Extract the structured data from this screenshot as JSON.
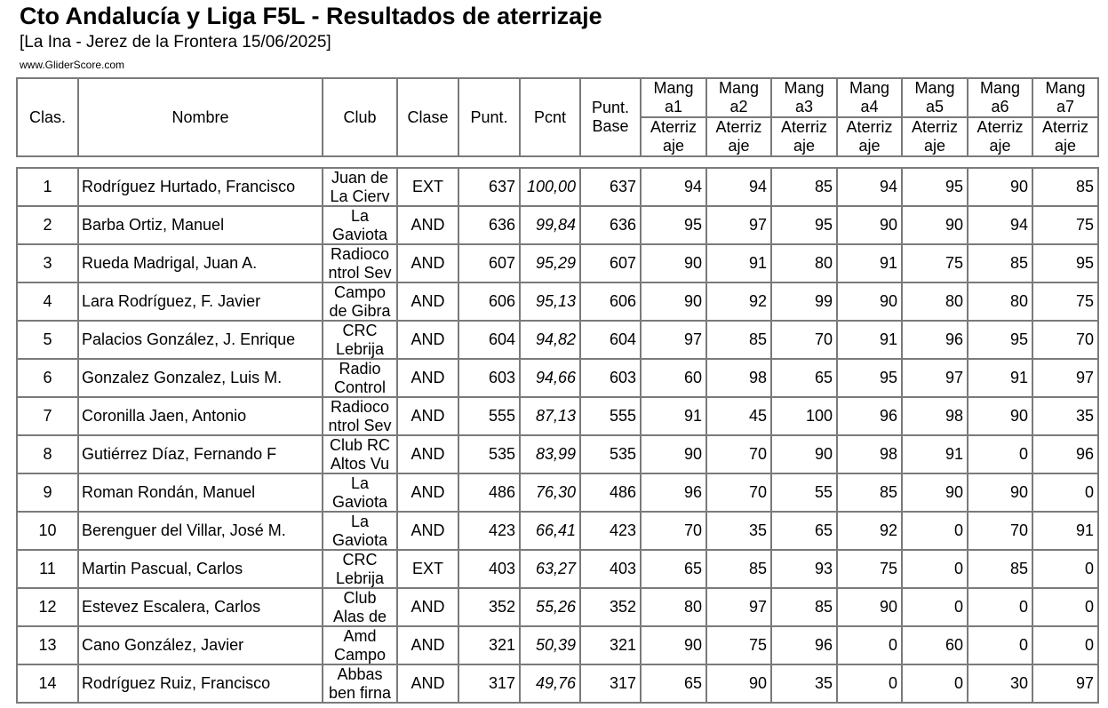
{
  "header": {
    "title": "Cto Andalucía y Liga F5L - Resultados de aterrizaje",
    "subtitle": "[La Ina - Jerez de la Frontera 15/06/2025]",
    "site": "www.GliderScore.com"
  },
  "columns": {
    "clas": "Clas.",
    "nombre": "Nombre",
    "club": "Club",
    "clase": "Clase",
    "punt": "Punt.",
    "pcnt": "Pcnt",
    "punt_base": "Punt. Base",
    "rounds": [
      "Manga1",
      "Manga2",
      "Manga3",
      "Manga4",
      "Manga5",
      "Manga6",
      "Manga7"
    ],
    "round_sub": "Aterrizaje"
  },
  "rows": [
    {
      "clas": "1",
      "nombre": "Rodríguez Hurtado, Francisco",
      "club": "Juan de La Cierv",
      "clase": "EXT",
      "punt": "637",
      "pcnt": "100,00",
      "base": "637",
      "m": [
        "94",
        "94",
        "85",
        "94",
        "95",
        "90",
        "85"
      ]
    },
    {
      "clas": "2",
      "nombre": "Barba Ortiz, Manuel",
      "club": "La Gaviota",
      "clase": "AND",
      "punt": "636",
      "pcnt": "99,84",
      "base": "636",
      "m": [
        "95",
        "97",
        "95",
        "90",
        "90",
        "94",
        "75"
      ]
    },
    {
      "clas": "3",
      "nombre": "Rueda Madrigal, Juan A.",
      "club": "Radiocontrol Sev",
      "clase": "AND",
      "punt": "607",
      "pcnt": "95,29",
      "base": "607",
      "m": [
        "90",
        "91",
        "80",
        "91",
        "75",
        "85",
        "95"
      ]
    },
    {
      "clas": "4",
      "nombre": "Lara Rodríguez, F. Javier",
      "club": "Campo de Gibra",
      "clase": "AND",
      "punt": "606",
      "pcnt": "95,13",
      "base": "606",
      "m": [
        "90",
        "92",
        "99",
        "90",
        "80",
        "80",
        "75"
      ]
    },
    {
      "clas": "5",
      "nombre": "Palacios González, J. Enrique",
      "club": "CRC Lebrija",
      "clase": "AND",
      "punt": "604",
      "pcnt": "94,82",
      "base": "604",
      "m": [
        "97",
        "85",
        "70",
        "91",
        "96",
        "95",
        "70"
      ]
    },
    {
      "clas": "6",
      "nombre": "Gonzalez Gonzalez, Luis M.",
      "club": "Radio Control",
      "clase": "AND",
      "punt": "603",
      "pcnt": "94,66",
      "base": "603",
      "m": [
        "60",
        "98",
        "65",
        "95",
        "97",
        "91",
        "97"
      ]
    },
    {
      "clas": "7",
      "nombre": "Coronilla Jaen, Antonio",
      "club": "Radiocontrol Sev",
      "clase": "AND",
      "punt": "555",
      "pcnt": "87,13",
      "base": "555",
      "m": [
        "91",
        "45",
        "100",
        "96",
        "98",
        "90",
        "35"
      ]
    },
    {
      "clas": "8",
      "nombre": "Gutiérrez Díaz, Fernando F",
      "club": "Club RC Altos Vu",
      "clase": "AND",
      "punt": "535",
      "pcnt": "83,99",
      "base": "535",
      "m": [
        "90",
        "70",
        "90",
        "98",
        "91",
        "0",
        "96"
      ]
    },
    {
      "clas": "9",
      "nombre": "Roman Rondán, Manuel",
      "club": "La Gaviota",
      "clase": "AND",
      "punt": "486",
      "pcnt": "76,30",
      "base": "486",
      "m": [
        "96",
        "70",
        "55",
        "85",
        "90",
        "90",
        "0"
      ]
    },
    {
      "clas": "10",
      "nombre": "Berenguer del Villar, José M.",
      "club": "La Gaviota",
      "clase": "AND",
      "punt": "423",
      "pcnt": "66,41",
      "base": "423",
      "m": [
        "70",
        "35",
        "65",
        "92",
        "0",
        "70",
        "91"
      ]
    },
    {
      "clas": "11",
      "nombre": "Martin Pascual, Carlos",
      "club": "CRC Lebrija",
      "clase": "EXT",
      "punt": "403",
      "pcnt": "63,27",
      "base": "403",
      "m": [
        "65",
        "85",
        "93",
        "75",
        "0",
        "85",
        "0"
      ]
    },
    {
      "clas": "12",
      "nombre": "Estevez Escalera, Carlos",
      "club": "Club Alas de",
      "clase": "AND",
      "punt": "352",
      "pcnt": "55,26",
      "base": "352",
      "m": [
        "80",
        "97",
        "85",
        "90",
        "0",
        "0",
        "0"
      ]
    },
    {
      "clas": "13",
      "nombre": "Cano González, Javier",
      "club": "Amd Campo",
      "clase": "AND",
      "punt": "321",
      "pcnt": "50,39",
      "base": "321",
      "m": [
        "90",
        "75",
        "96",
        "0",
        "60",
        "0",
        "0"
      ]
    },
    {
      "clas": "14",
      "nombre": "Rodríguez Ruiz, Francisco",
      "club": "Abbas ben firna",
      "clase": "AND",
      "punt": "317",
      "pcnt": "49,76",
      "base": "317",
      "m": [
        "65",
        "90",
        "35",
        "0",
        "0",
        "30",
        "97"
      ]
    }
  ]
}
